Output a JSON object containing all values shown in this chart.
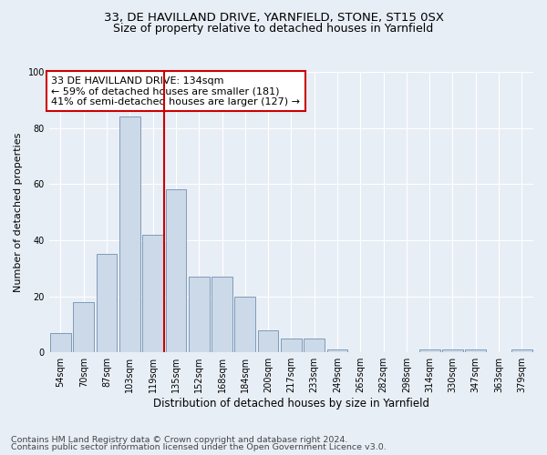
{
  "title1": "33, DE HAVILLAND DRIVE, YARNFIELD, STONE, ST15 0SX",
  "title2": "Size of property relative to detached houses in Yarnfield",
  "xlabel": "Distribution of detached houses by size in Yarnfield",
  "ylabel": "Number of detached properties",
  "footer1": "Contains HM Land Registry data © Crown copyright and database right 2024.",
  "footer2": "Contains public sector information licensed under the Open Government Licence v3.0.",
  "annotation_line1": "33 DE HAVILLAND DRIVE: 134sqm",
  "annotation_line2": "← 59% of detached houses are smaller (181)",
  "annotation_line3": "41% of semi-detached houses are larger (127) →",
  "bar_values": [
    7,
    18,
    35,
    84,
    42,
    58,
    27,
    27,
    20,
    8,
    5,
    5,
    1,
    0,
    0,
    0,
    1,
    1,
    1,
    0,
    1
  ],
  "categories": [
    "54sqm",
    "70sqm",
    "87sqm",
    "103sqm",
    "119sqm",
    "135sqm",
    "152sqm",
    "168sqm",
    "184sqm",
    "200sqm",
    "217sqm",
    "233sqm",
    "249sqm",
    "265sqm",
    "282sqm",
    "298sqm",
    "314sqm",
    "330sqm",
    "347sqm",
    "363sqm",
    "379sqm"
  ],
  "bar_color": "#ccd9e8",
  "bar_edge_color": "#7090b0",
  "vline_color": "#cc0000",
  "ylim": [
    0,
    100
  ],
  "yticks": [
    0,
    20,
    40,
    60,
    80,
    100
  ],
  "bg_color": "#e8eef6",
  "plot_bg_color": "#e8eef6",
  "annotation_box_color": "#ffffff",
  "annotation_box_edge": "#cc0000",
  "grid_color": "#ffffff",
  "title1_fontsize": 9.5,
  "title2_fontsize": 9,
  "xlabel_fontsize": 8.5,
  "ylabel_fontsize": 8,
  "tick_fontsize": 7,
  "annotation_fontsize": 8,
  "footer_fontsize": 6.8
}
